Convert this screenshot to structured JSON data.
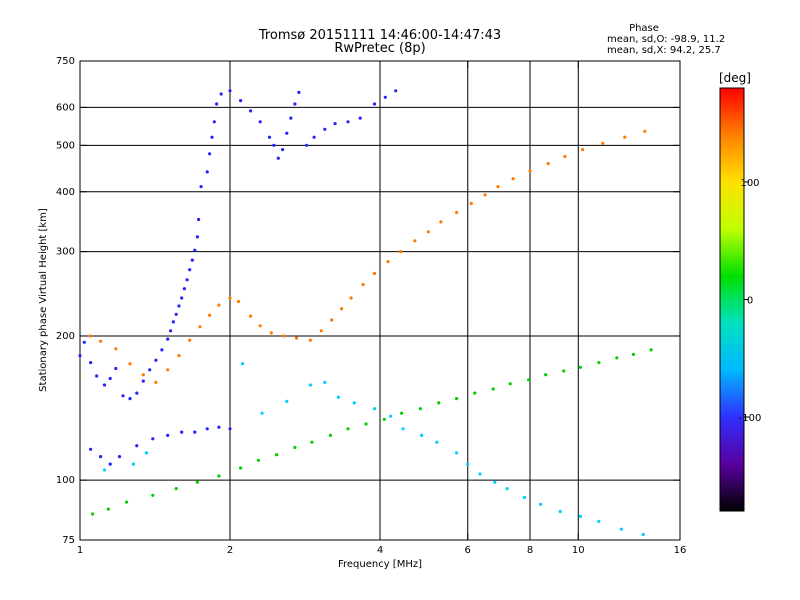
{
  "chart_data": {
    "type": "scatter",
    "title": "Tromsø 20151111 14:46:00-14:47:43",
    "subtitle": "RwPretec (8p)",
    "xlabel": "Frequency [MHz]",
    "ylabel": "Stationary phase Virtual Height [km]",
    "x_scale": "log",
    "y_scale": "log",
    "xlim": [
      1,
      16
    ],
    "ylim": [
      75,
      750
    ],
    "x_ticks": [
      1,
      2,
      4,
      6,
      8,
      10,
      16
    ],
    "y_ticks": [
      75,
      100,
      200,
      300,
      400,
      500,
      600,
      750
    ],
    "grid": true,
    "gridlines_x": [
      2,
      4,
      6,
      8,
      10
    ],
    "gridlines_y": [
      100,
      200,
      300,
      400,
      500,
      600
    ],
    "phase_stats": {
      "title": "Phase",
      "line1": "mean, sd,O: -98.9, 11.2",
      "line2": "mean, sd,X: 94.2, 25.7"
    },
    "colorbar": {
      "label": "[deg]",
      "ticks": [
        "100",
        "0",
        "-100"
      ],
      "tick_values": [
        100,
        0,
        -100
      ],
      "range": [
        -180,
        180
      ],
      "colors": [
        "#000000",
        "#5a00a0",
        "#2f2fff",
        "#00b8ff",
        "#00e0c0",
        "#00e000",
        "#c0ff00",
        "#ffe000",
        "#ff8000",
        "#ff0000"
      ]
    },
    "series": [
      {
        "name": "O",
        "color": "#2323ff",
        "points": [
          [
            1.0,
            182
          ],
          [
            1.02,
            194
          ],
          [
            1.05,
            176
          ],
          [
            1.08,
            165
          ],
          [
            1.12,
            158
          ],
          [
            1.15,
            163
          ],
          [
            1.18,
            171
          ],
          [
            1.22,
            150
          ],
          [
            1.26,
            148
          ],
          [
            1.3,
            152
          ],
          [
            1.34,
            161
          ],
          [
            1.38,
            170
          ],
          [
            1.42,
            178
          ],
          [
            1.46,
            187
          ],
          [
            1.5,
            197
          ],
          [
            1.52,
            205
          ],
          [
            1.54,
            214
          ],
          [
            1.56,
            222
          ],
          [
            1.58,
            231
          ],
          [
            1.6,
            240
          ],
          [
            1.62,
            251
          ],
          [
            1.64,
            262
          ],
          [
            1.66,
            275
          ],
          [
            1.68,
            288
          ],
          [
            1.7,
            302
          ],
          [
            1.72,
            322
          ],
          [
            1.73,
            350
          ],
          [
            1.05,
            116
          ],
          [
            1.1,
            112
          ],
          [
            1.15,
            108
          ],
          [
            1.2,
            112
          ],
          [
            1.3,
            118
          ],
          [
            1.4,
            122
          ],
          [
            1.5,
            124
          ],
          [
            1.6,
            126
          ],
          [
            1.7,
            126
          ],
          [
            1.8,
            128
          ],
          [
            1.9,
            129
          ],
          [
            2.0,
            128
          ],
          [
            1.75,
            410
          ],
          [
            1.8,
            440
          ],
          [
            1.82,
            480
          ],
          [
            1.84,
            520
          ],
          [
            1.86,
            560
          ],
          [
            1.88,
            610
          ],
          [
            1.92,
            640
          ],
          [
            2.0,
            650
          ],
          [
            2.1,
            620
          ],
          [
            2.2,
            590
          ],
          [
            2.3,
            560
          ],
          [
            2.4,
            520
          ],
          [
            2.45,
            500
          ],
          [
            2.5,
            470
          ],
          [
            2.55,
            490
          ],
          [
            2.6,
            530
          ],
          [
            2.65,
            570
          ],
          [
            2.7,
            610
          ],
          [
            2.75,
            645
          ],
          [
            2.85,
            500
          ],
          [
            2.95,
            520
          ],
          [
            3.1,
            540
          ],
          [
            3.25,
            555
          ],
          [
            3.45,
            560
          ],
          [
            3.65,
            570
          ],
          [
            3.9,
            610
          ],
          [
            4.1,
            630
          ],
          [
            4.3,
            650
          ]
        ]
      },
      {
        "name": "X",
        "color": "#ff7a00",
        "points": [
          [
            1.05,
            200
          ],
          [
            1.1,
            195
          ],
          [
            1.18,
            188
          ],
          [
            1.26,
            175
          ],
          [
            1.34,
            166
          ],
          [
            1.42,
            160
          ],
          [
            1.5,
            170
          ],
          [
            1.58,
            182
          ],
          [
            1.66,
            196
          ],
          [
            1.74,
            209
          ],
          [
            1.82,
            221
          ],
          [
            1.9,
            232
          ],
          [
            2.0,
            240
          ],
          [
            2.08,
            236
          ],
          [
            2.2,
            220
          ],
          [
            2.3,
            210
          ],
          [
            2.42,
            203
          ],
          [
            2.56,
            200
          ],
          [
            2.72,
            198
          ],
          [
            2.9,
            196
          ],
          [
            3.05,
            205
          ],
          [
            3.2,
            216
          ],
          [
            3.35,
            228
          ],
          [
            3.5,
            240
          ],
          [
            3.7,
            256
          ],
          [
            3.9,
            270
          ],
          [
            4.15,
            286
          ],
          [
            4.4,
            300
          ],
          [
            4.7,
            316
          ],
          [
            5.0,
            330
          ],
          [
            5.3,
            346
          ],
          [
            5.7,
            362
          ],
          [
            6.1,
            378
          ],
          [
            6.5,
            394
          ],
          [
            6.9,
            410
          ],
          [
            7.4,
            426
          ],
          [
            8.0,
            442
          ],
          [
            8.7,
            458
          ],
          [
            9.4,
            474
          ],
          [
            10.2,
            490
          ],
          [
            11.2,
            505
          ],
          [
            12.4,
            520
          ],
          [
            13.6,
            535
          ]
        ]
      },
      {
        "name": "scatter-cyan",
        "color": "#00d0ff",
        "points": [
          [
            1.12,
            105
          ],
          [
            1.28,
            108
          ],
          [
            1.36,
            114
          ],
          [
            2.12,
            175
          ],
          [
            2.32,
            138
          ],
          [
            2.6,
            146
          ],
          [
            2.9,
            158
          ],
          [
            3.1,
            160
          ],
          [
            3.3,
            149
          ],
          [
            3.55,
            145
          ],
          [
            3.9,
            141
          ],
          [
            4.2,
            136
          ],
          [
            4.45,
            128
          ],
          [
            4.85,
            124
          ],
          [
            5.2,
            120
          ],
          [
            5.7,
            114
          ],
          [
            6.0,
            108
          ],
          [
            6.35,
            103
          ],
          [
            6.8,
            99
          ],
          [
            7.2,
            96
          ],
          [
            7.8,
            92
          ],
          [
            8.4,
            89
          ],
          [
            9.2,
            86
          ],
          [
            10.1,
            84
          ],
          [
            11.0,
            82
          ],
          [
            12.2,
            79
          ],
          [
            13.5,
            77
          ]
        ]
      },
      {
        "name": "scatter-green",
        "color": "#00d000",
        "points": [
          [
            1.06,
            85
          ],
          [
            1.14,
            87
          ],
          [
            1.24,
            90
          ],
          [
            1.4,
            93
          ],
          [
            1.56,
            96
          ],
          [
            1.72,
            99
          ],
          [
            1.9,
            102
          ],
          [
            2.1,
            106
          ],
          [
            2.28,
            110
          ],
          [
            2.48,
            113
          ],
          [
            2.7,
            117
          ],
          [
            2.92,
            120
          ],
          [
            3.18,
            124
          ],
          [
            3.45,
            128
          ],
          [
            3.75,
            131
          ],
          [
            4.08,
            134
          ],
          [
            4.42,
            138
          ],
          [
            4.82,
            141
          ],
          [
            5.25,
            145
          ],
          [
            5.7,
            148
          ],
          [
            6.2,
            152
          ],
          [
            6.75,
            155
          ],
          [
            7.3,
            159
          ],
          [
            7.95,
            162
          ],
          [
            8.6,
            166
          ],
          [
            9.35,
            169
          ],
          [
            10.1,
            172
          ],
          [
            11.0,
            176
          ],
          [
            11.95,
            180
          ],
          [
            12.9,
            183
          ],
          [
            14.0,
            187
          ]
        ]
      }
    ]
  }
}
